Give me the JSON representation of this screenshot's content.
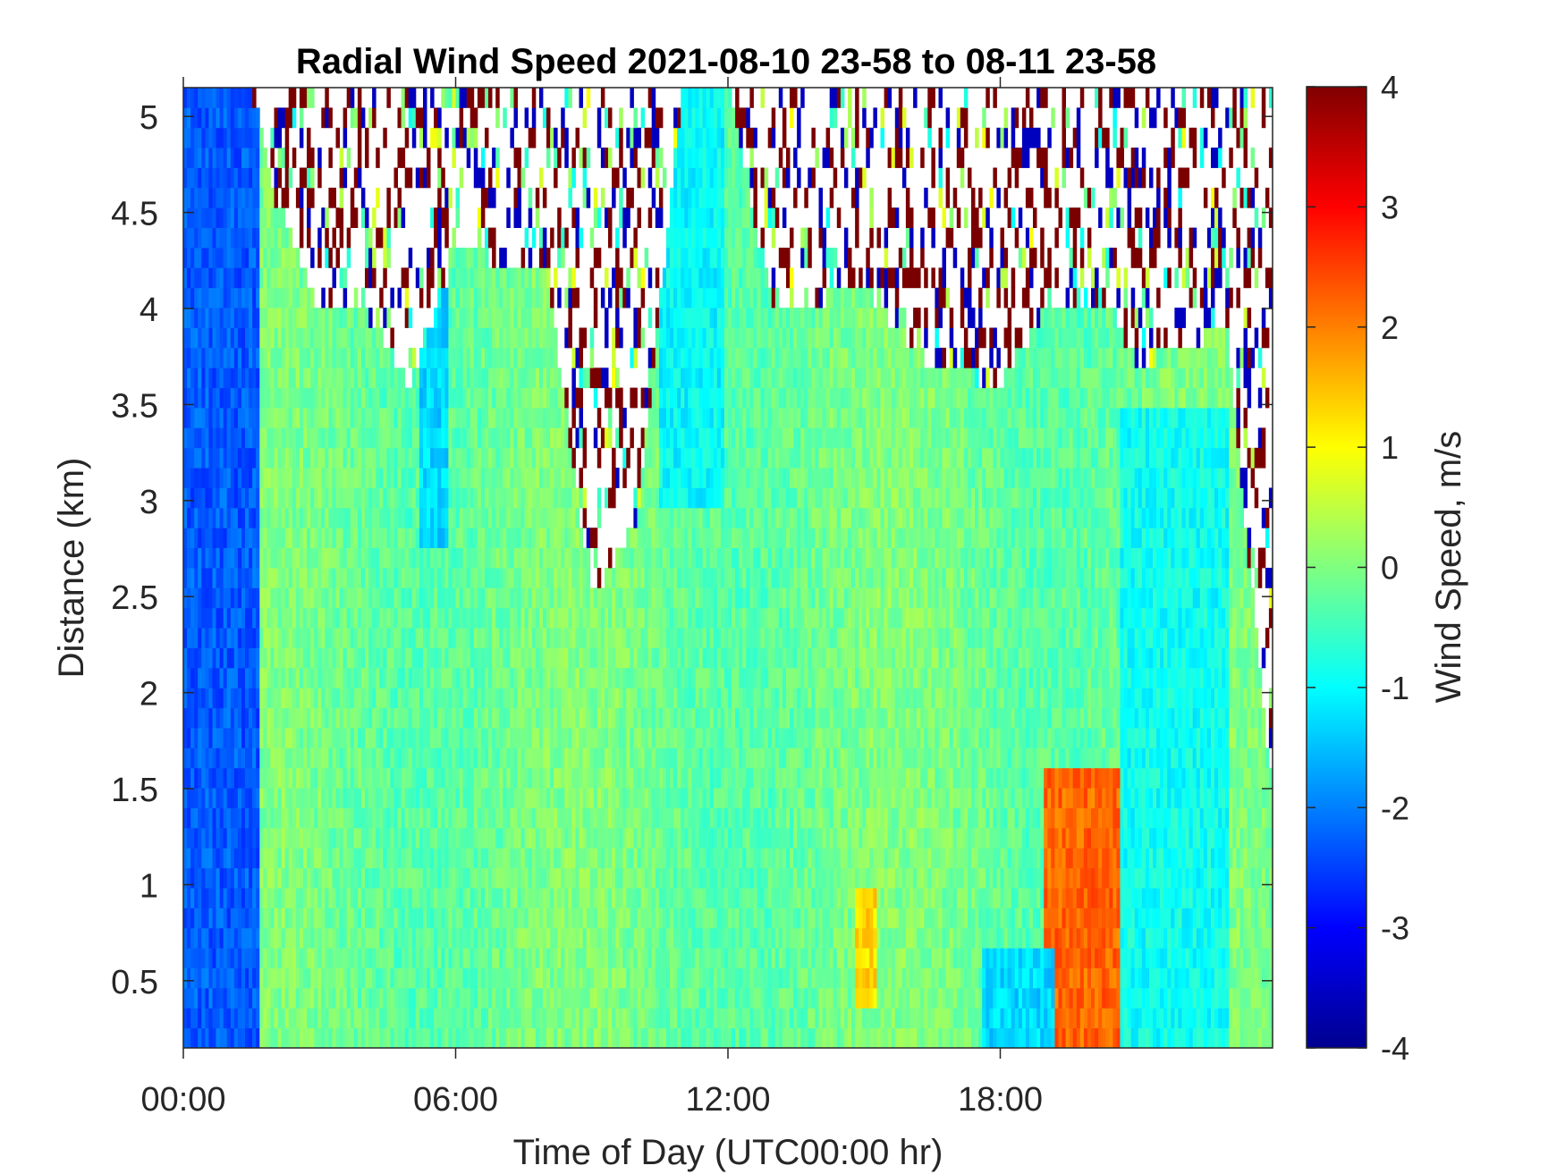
{
  "chart_data": {
    "type": "heatmap",
    "title": "Radial Wind Speed 2021-08-10 23-58 to 08-11 23-58",
    "xlabel": "Time of Day (UTC00:00 hr)",
    "ylabel": "Distance (km)",
    "colorbar_label": "Wind Speed, m/s",
    "x_ticks": [
      {
        "value": 0,
        "label": "00:00"
      },
      {
        "value": 6,
        "label": "06:00"
      },
      {
        "value": 12,
        "label": "12:00"
      },
      {
        "value": 18,
        "label": "18:00"
      }
    ],
    "y_ticks": [
      {
        "value": 0.5,
        "label": "0.5"
      },
      {
        "value": 1,
        "label": "1"
      },
      {
        "value": 1.5,
        "label": "1.5"
      },
      {
        "value": 2,
        "label": "2"
      },
      {
        "value": 2.5,
        "label": "2.5"
      },
      {
        "value": 3,
        "label": "3"
      },
      {
        "value": 3.5,
        "label": "3.5"
      },
      {
        "value": 4,
        "label": "4"
      },
      {
        "value": 4.5,
        "label": "4.5"
      },
      {
        "value": 5,
        "label": "5"
      }
    ],
    "colorbar_ticks": [
      {
        "value": 4,
        "label": "4"
      },
      {
        "value": 3,
        "label": "3"
      },
      {
        "value": 2,
        "label": "2"
      },
      {
        "value": 1,
        "label": "1"
      },
      {
        "value": 0,
        "label": "0"
      },
      {
        "value": -1,
        "label": "-1"
      },
      {
        "value": -2,
        "label": "-2"
      },
      {
        "value": -3,
        "label": "-3"
      },
      {
        "value": -4,
        "label": "-4"
      }
    ],
    "xlim": [
      0,
      24
    ],
    "ylim": [
      0.15,
      5.15
    ],
    "clim": [
      -4,
      4
    ],
    "colormap": "jet",
    "grid": false,
    "approx_profile": {
      "description_units": "hour of day -> data top height (km)",
      "data_top_km": [
        {
          "hour": 0.0,
          "top": 5.15
        },
        {
          "hour": 1.5,
          "top": 5.15
        },
        {
          "hour": 2.0,
          "top": 4.6
        },
        {
          "hour": 3.0,
          "top": 4.0
        },
        {
          "hour": 4.0,
          "top": 4.0
        },
        {
          "hour": 5.0,
          "top": 3.6
        },
        {
          "hour": 6.0,
          "top": 4.3
        },
        {
          "hour": 8.0,
          "top": 4.2
        },
        {
          "hour": 9.0,
          "top": 2.5
        },
        {
          "hour": 10.0,
          "top": 2.9
        },
        {
          "hour": 11.0,
          "top": 5.15
        },
        {
          "hour": 12.0,
          "top": 5.15
        },
        {
          "hour": 13.0,
          "top": 4.0
        },
        {
          "hour": 15.0,
          "top": 4.1
        },
        {
          "hour": 16.5,
          "top": 3.7
        },
        {
          "hour": 18.0,
          "top": 3.6
        },
        {
          "hour": 19.0,
          "top": 4.0
        },
        {
          "hour": 20.5,
          "top": 4.0
        },
        {
          "hour": 21.0,
          "top": 3.7
        },
        {
          "hour": 23.0,
          "top": 3.9
        },
        {
          "hour": 24.0,
          "top": 1.4
        }
      ],
      "mean_speed_regions": [
        {
          "hours": [
            0,
            1.7
          ],
          "km": [
            0.15,
            5.15
          ],
          "speed": -2.3
        },
        {
          "hours": [
            5.2,
            5.8
          ],
          "km": [
            2.8,
            4.5
          ],
          "speed": -1.3
        },
        {
          "hours": [
            10.5,
            11.9
          ],
          "km": [
            3.0,
            5.15
          ],
          "speed": -1.0
        },
        {
          "hours": [
            19.0,
            20.6
          ],
          "km": [
            0.15,
            1.6
          ],
          "speed": 2.2
        },
        {
          "hours": [
            14.8,
            15.3
          ],
          "km": [
            0.4,
            1.0
          ],
          "speed": 1.3
        },
        {
          "hours": [
            17.6,
            19.2
          ],
          "km": [
            0.15,
            0.7
          ],
          "speed": -1.3
        },
        {
          "hours": [
            20.6,
            23.0
          ],
          "km": [
            0.15,
            3.5
          ],
          "speed": -0.9
        }
      ]
    }
  }
}
